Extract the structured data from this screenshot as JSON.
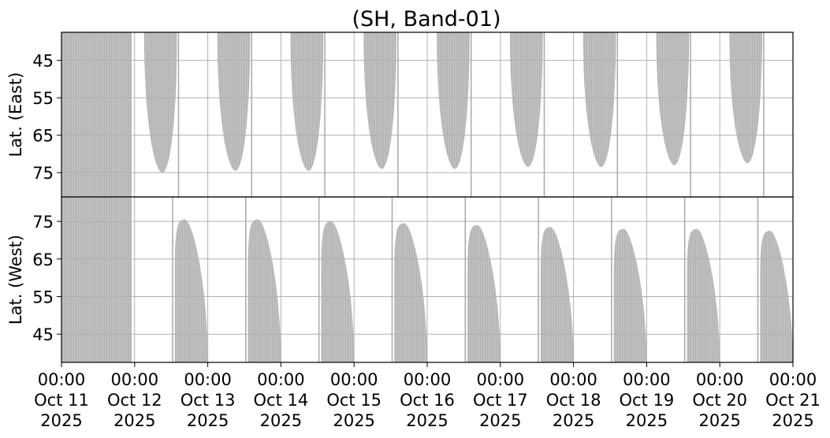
{
  "chart_data": {
    "type": "heatmap",
    "title": "(SH, Band-01)",
    "x_ticks": [
      {
        "time": "00:00",
        "date": "Oct 11",
        "year": "2025"
      },
      {
        "time": "00:00",
        "date": "Oct 12",
        "year": "2025"
      },
      {
        "time": "00:00",
        "date": "Oct 13",
        "year": "2025"
      },
      {
        "time": "00:00",
        "date": "Oct 14",
        "year": "2025"
      },
      {
        "time": "00:00",
        "date": "Oct 15",
        "year": "2025"
      },
      {
        "time": "00:00",
        "date": "Oct 16",
        "year": "2025"
      },
      {
        "time": "00:00",
        "date": "Oct 17",
        "year": "2025"
      },
      {
        "time": "00:00",
        "date": "Oct 18",
        "year": "2025"
      },
      {
        "time": "00:00",
        "date": "Oct 19",
        "year": "2025"
      },
      {
        "time": "00:00",
        "date": "Oct 20",
        "year": "2025"
      },
      {
        "time": "00:00",
        "date": "Oct 21",
        "year": "2025"
      }
    ],
    "x_range_days": [
      0,
      10
    ],
    "panels": [
      {
        "name": "east",
        "ylabel": "Lat. (East)",
        "yticks": [
          "45",
          "55",
          "65",
          "75"
        ],
        "ylim_top_to_bottom": [
          37.5,
          81.5
        ],
        "full_coverage_days": [
          0,
          0.96
        ],
        "shapes": [
          {
            "start": 1.13,
            "end": 1.58,
            "min_lat": 37.5,
            "max_lat": 75
          },
          {
            "start": 2.13,
            "end": 2.58,
            "min_lat": 37.5,
            "max_lat": 74.5
          },
          {
            "start": 3.13,
            "end": 3.58,
            "min_lat": 37.5,
            "max_lat": 74.5
          },
          {
            "start": 4.13,
            "end": 4.58,
            "min_lat": 37.5,
            "max_lat": 74
          },
          {
            "start": 5.13,
            "end": 5.58,
            "min_lat": 37.5,
            "max_lat": 74
          },
          {
            "start": 6.13,
            "end": 6.58,
            "min_lat": 37.5,
            "max_lat": 73.5
          },
          {
            "start": 7.13,
            "end": 7.58,
            "min_lat": 37.5,
            "max_lat": 73.5
          },
          {
            "start": 8.13,
            "end": 8.58,
            "min_lat": 37.5,
            "max_lat": 73
          },
          {
            "start": 9.13,
            "end": 9.58,
            "min_lat": 37.5,
            "max_lat": 72.5
          }
        ]
      },
      {
        "name": "west",
        "ylabel": "Lat. (West)",
        "yticks": [
          "75",
          "65",
          "55",
          "45"
        ],
        "ylim_top_to_bottom": [
          81.5,
          37.5
        ],
        "full_coverage_days": [
          0,
          0.96
        ],
        "shapes": [
          {
            "start": 1.55,
            "end": 2.0,
            "min_lat": 37.5,
            "max_lat": 75.5
          },
          {
            "start": 2.55,
            "end": 3.0,
            "min_lat": 37.5,
            "max_lat": 75.5
          },
          {
            "start": 3.55,
            "end": 4.0,
            "min_lat": 37.5,
            "max_lat": 75
          },
          {
            "start": 4.55,
            "end": 5.0,
            "min_lat": 37.5,
            "max_lat": 74.5
          },
          {
            "start": 5.55,
            "end": 6.0,
            "min_lat": 37.5,
            "max_lat": 74
          },
          {
            "start": 6.55,
            "end": 7.0,
            "min_lat": 37.5,
            "max_lat": 73.5
          },
          {
            "start": 7.55,
            "end": 8.0,
            "min_lat": 37.5,
            "max_lat": 73
          },
          {
            "start": 8.55,
            "end": 9.0,
            "min_lat": 37.5,
            "max_lat": 73
          },
          {
            "start": 9.55,
            "end": 10.0,
            "min_lat": 37.5,
            "max_lat": 72.5
          }
        ]
      }
    ],
    "grid": true,
    "colors": {
      "fill": "#c0c0c0",
      "pixel_line": "#a8a8a8",
      "grid": "#b0b0b0",
      "axis": "#000000"
    }
  }
}
